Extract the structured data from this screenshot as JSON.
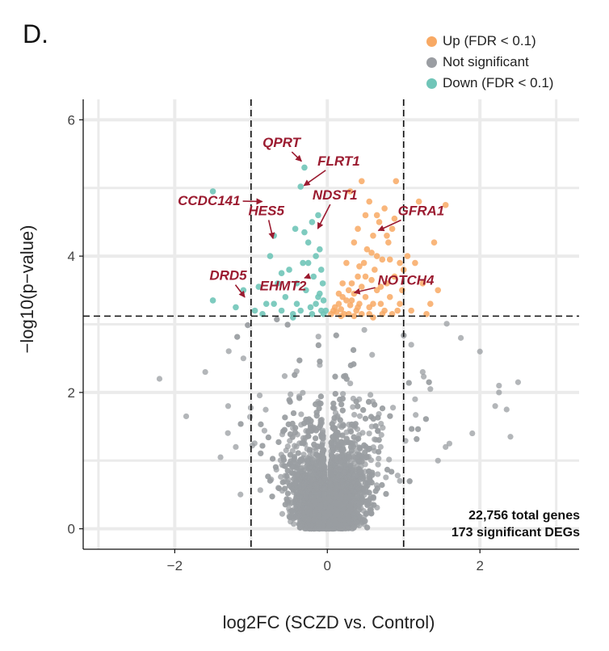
{
  "panel_label": "D.",
  "legend": [
    {
      "label": "Up (FDR < 0.1)",
      "color": "#F8A964"
    },
    {
      "label": "Not significant",
      "color": "#9A9DA2"
    },
    {
      "label": "Down (FDR < 0.1)",
      "color": "#70C5B8"
    }
  ],
  "annotation": {
    "line1": "22,756 total genes",
    "line2": "173 significant DEGs"
  },
  "chart_data": {
    "type": "scatter",
    "xlabel": "log2FC (SCZD vs. Control)",
    "ylabel": "−log10(p−value)",
    "xlim": [
      -3.2,
      3.3
    ],
    "ylim": [
      -0.3,
      6.3
    ],
    "x_ticks": [
      -2,
      0,
      2
    ],
    "y_ticks": [
      0,
      2,
      4,
      6
    ],
    "x_tick_labels": [
      "−2",
      "0",
      "2"
    ],
    "y_tick_labels": [
      "0",
      "2",
      "4",
      "6"
    ],
    "grid": true,
    "thresholds": {
      "x": [
        -1,
        1
      ],
      "y": 3.12
    },
    "colors": {
      "up": "#F8A964",
      "ns": "#9A9DA2",
      "down": "#70C5B8",
      "label": "#9B1B30"
    },
    "n_background_points": 6000,
    "labeled_genes": [
      {
        "gene": "QPRT",
        "x": -0.3,
        "y": 5.35,
        "label_x": -0.6,
        "label_y": 5.6
      },
      {
        "gene": "FLRT1",
        "x": -0.35,
        "y": 5.0,
        "label_x": 0.15,
        "label_y": 5.33
      },
      {
        "gene": "CCDC141",
        "x": -0.8,
        "y": 4.8,
        "label_x": -1.55,
        "label_y": 4.75
      },
      {
        "gene": "NDST1",
        "x": -0.15,
        "y": 4.35,
        "label_x": 0.1,
        "label_y": 4.83
      },
      {
        "gene": "HES5",
        "x": -0.7,
        "y": 4.2,
        "label_x": -0.8,
        "label_y": 4.6
      },
      {
        "gene": "GFRA1",
        "x": 0.62,
        "y": 4.35,
        "label_x": 1.23,
        "label_y": 4.6
      },
      {
        "gene": "EHMT2",
        "x": -0.25,
        "y": 3.7,
        "label_x": -0.58,
        "label_y": 3.5
      },
      {
        "gene": "DRD5",
        "x": -1.05,
        "y": 3.35,
        "label_x": -1.3,
        "label_y": 3.65
      },
      {
        "gene": "NOTCH4",
        "x": 0.3,
        "y": 3.45,
        "label_x": 1.03,
        "label_y": 3.58
      }
    ],
    "significant_up": [
      [
        0.05,
        3.15
      ],
      [
        0.08,
        3.2
      ],
      [
        0.1,
        3.25
      ],
      [
        0.12,
        3.18
      ],
      [
        0.15,
        3.3
      ],
      [
        0.18,
        3.22
      ],
      [
        0.2,
        3.4
      ],
      [
        0.22,
        3.15
      ],
      [
        0.25,
        3.35
      ],
      [
        0.28,
        3.5
      ],
      [
        0.3,
        3.28
      ],
      [
        0.32,
        3.6
      ],
      [
        0.35,
        3.45
      ],
      [
        0.38,
        3.2
      ],
      [
        0.4,
        3.7
      ],
      [
        0.42,
        3.3
      ],
      [
        0.45,
        3.55
      ],
      [
        0.48,
        3.9
      ],
      [
        0.5,
        3.4
      ],
      [
        0.52,
        4.1
      ],
      [
        0.55,
        3.25
      ],
      [
        0.58,
        3.65
      ],
      [
        0.6,
        4.3
      ],
      [
        0.62,
        3.8
      ],
      [
        0.65,
        3.5
      ],
      [
        0.68,
        4.5
      ],
      [
        0.7,
        3.3
      ],
      [
        0.72,
        3.95
      ],
      [
        0.75,
        4.7
      ],
      [
        0.78,
        3.6
      ],
      [
        0.8,
        4.2
      ],
      [
        0.82,
        3.4
      ],
      [
        0.85,
        4.4
      ],
      [
        0.88,
        3.7
      ],
      [
        0.9,
        5.1
      ],
      [
        0.92,
        3.2
      ],
      [
        0.95,
        3.9
      ],
      [
        0.98,
        3.5
      ],
      [
        0.3,
        4.95
      ],
      [
        0.45,
        5.1
      ],
      [
        0.5,
        4.6
      ],
      [
        0.35,
        4.2
      ],
      [
        0.55,
        4.8
      ],
      [
        0.25,
        3.9
      ],
      [
        0.65,
        4.0
      ],
      [
        0.4,
        4.4
      ],
      [
        0.2,
        3.6
      ],
      [
        0.15,
        3.45
      ],
      [
        1.05,
        4.0
      ],
      [
        1.1,
        3.2
      ],
      [
        1.2,
        4.8
      ],
      [
        1.25,
        3.6
      ],
      [
        1.35,
        3.3
      ],
      [
        1.4,
        4.2
      ],
      [
        1.55,
        4.75
      ],
      [
        1.45,
        3.5
      ],
      [
        1.15,
        3.9
      ],
      [
        1.3,
        3.15
      ],
      [
        0.55,
        3.15
      ],
      [
        0.75,
        3.2
      ],
      [
        0.6,
        3.1
      ],
      [
        0.85,
        3.15
      ],
      [
        0.7,
        3.55
      ],
      [
        0.45,
        3.15
      ],
      [
        0.35,
        3.12
      ],
      [
        0.95,
        3.3
      ],
      [
        1.0,
        3.8
      ],
      [
        0.4,
        3.25
      ],
      [
        0.28,
        3.15
      ],
      [
        0.5,
        3.7
      ],
      [
        0.65,
        4.6
      ],
      [
        0.6,
        3.3
      ],
      [
        0.78,
        4.3
      ],
      [
        0.58,
        4.05
      ],
      [
        0.42,
        3.85
      ],
      [
        0.32,
        3.35
      ],
      [
        0.88,
        4.55
      ],
      [
        0.72,
        3.15
      ],
      [
        0.82,
        3.95
      ],
      [
        0.18,
        3.12
      ]
    ],
    "significant_down": [
      [
        -1.5,
        4.95
      ],
      [
        -1.5,
        3.35
      ],
      [
        -1.1,
        3.5
      ],
      [
        -1.2,
        3.25
      ],
      [
        -0.95,
        3.2
      ],
      [
        -0.9,
        3.55
      ],
      [
        -0.85,
        3.15
      ],
      [
        -0.8,
        3.3
      ],
      [
        -0.75,
        4.0
      ],
      [
        -0.7,
        4.3
      ],
      [
        -0.65,
        3.6
      ],
      [
        -0.6,
        3.2
      ],
      [
        -0.55,
        3.4
      ],
      [
        -0.5,
        3.8
      ],
      [
        -0.45,
        3.15
      ],
      [
        -0.42,
        4.4
      ],
      [
        -0.4,
        3.3
      ],
      [
        -0.35,
        5.02
      ],
      [
        -0.32,
        3.9
      ],
      [
        -0.3,
        5.3
      ],
      [
        -0.28,
        3.5
      ],
      [
        -0.25,
        4.2
      ],
      [
        -0.22,
        3.25
      ],
      [
        -0.2,
        4.5
      ],
      [
        -0.18,
        3.7
      ],
      [
        -0.15,
        3.3
      ],
      [
        -0.12,
        4.6
      ],
      [
        -0.1,
        3.45
      ],
      [
        -0.08,
        3.2
      ],
      [
        -0.06,
        3.6
      ],
      [
        -0.05,
        3.15
      ],
      [
        -0.1,
        4.1
      ],
      [
        -0.15,
        4.0
      ],
      [
        -0.3,
        4.35
      ],
      [
        -0.4,
        3.6
      ],
      [
        -0.6,
        3.75
      ],
      [
        -0.45,
        3.1
      ],
      [
        -0.2,
        3.15
      ],
      [
        -0.35,
        3.2
      ],
      [
        -0.7,
        3.3
      ],
      [
        -0.25,
        3.9
      ],
      [
        -0.12,
        3.4
      ],
      [
        -0.05,
        3.35
      ],
      [
        -0.08,
        3.8
      ],
      [
        -0.02,
        3.2
      ]
    ]
  }
}
